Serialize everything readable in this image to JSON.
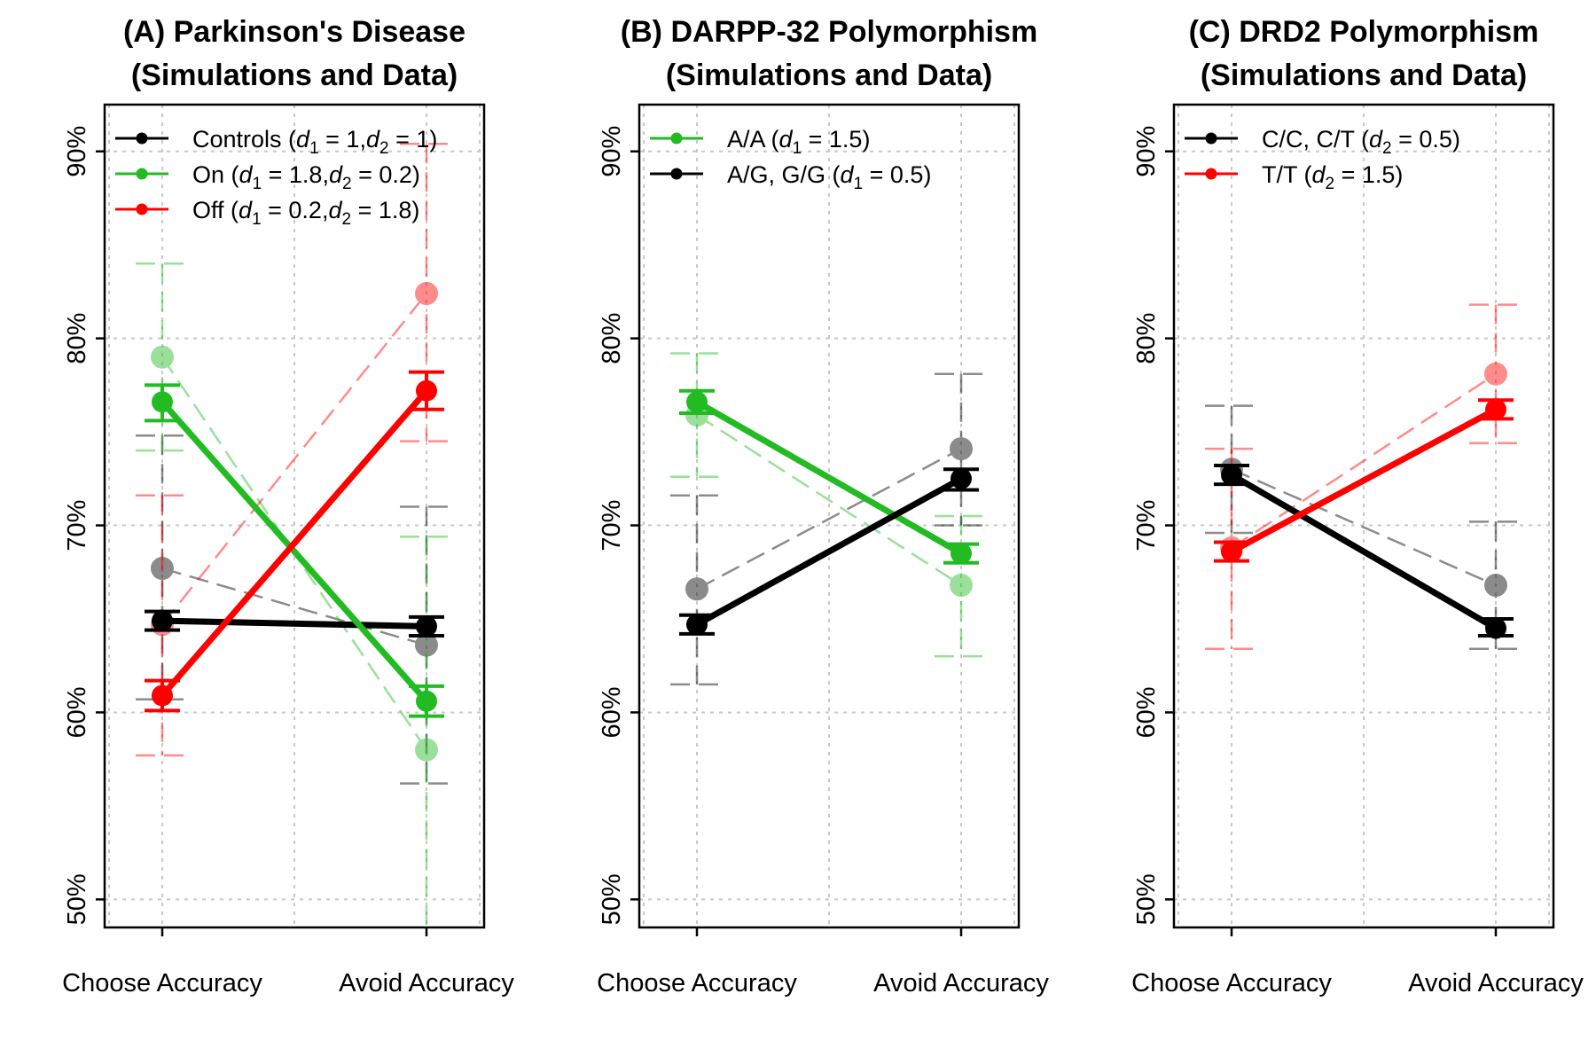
{
  "colors": {
    "black": "#000000",
    "green": "#22bb22",
    "red": "#ff0000",
    "grid": "#c8c8c8"
  },
  "chart_data": [
    {
      "type": "line",
      "title_line1": "(A) Parkinson's Disease",
      "title_line2": "(Simulations and Data)",
      "categories": [
        "Choose Accuracy",
        "Avoid Accuracy"
      ],
      "y_ticks": [
        "50%",
        "60%",
        "70%",
        "80%",
        "90%"
      ],
      "ylim": [
        48.5,
        92.5
      ],
      "grid": true,
      "legend_position": "top-left",
      "legend": [
        {
          "color": "#000000",
          "label": "Controls",
          "params": [
            "d|1|= 1",
            "d|2|= 1"
          ]
        },
        {
          "color": "#22bb22",
          "label": "On",
          "params": [
            "d|1|= 1.8",
            "d|2|= 0.2"
          ]
        },
        {
          "color": "#ff0000",
          "label": "Off",
          "params": [
            "d|1|= 0.2",
            "d|2|= 1.8"
          ]
        }
      ],
      "series": [
        {
          "name": "Controls",
          "color": "#000000",
          "simulation": {
            "values": [
              64.9,
              64.6
            ],
            "err_low": [
              64.4,
              64.1
            ],
            "err_high": [
              65.4,
              65.1
            ]
          },
          "data": {
            "values": [
              67.7,
              63.6
            ],
            "err_low": [
              60.7,
              56.2
            ],
            "err_high": [
              74.8,
              71.0
            ]
          }
        },
        {
          "name": "On",
          "color": "#22bb22",
          "simulation": {
            "values": [
              76.6,
              60.6
            ],
            "err_low": [
              75.6,
              59.8
            ],
            "err_high": [
              77.5,
              61.4
            ]
          },
          "data": {
            "values": [
              79.0,
              58.0
            ],
            "err_low": [
              74.0,
              46.5
            ],
            "err_high": [
              84.0,
              69.4
            ]
          }
        },
        {
          "name": "Off",
          "color": "#ff0000",
          "simulation": {
            "values": [
              60.9,
              77.2
            ],
            "err_low": [
              60.1,
              76.2
            ],
            "err_high": [
              61.7,
              78.2
            ]
          },
          "data": {
            "values": [
              64.7,
              82.4
            ],
            "err_low": [
              57.7,
              74.5
            ],
            "err_high": [
              71.6,
              90.4
            ]
          }
        }
      ]
    },
    {
      "type": "line",
      "title_line1": "(B) DARPP-32 Polymorphism",
      "title_line2": "(Simulations and Data)",
      "categories": [
        "Choose Accuracy",
        "Avoid Accuracy"
      ],
      "y_ticks": [
        "50%",
        "60%",
        "70%",
        "80%",
        "90%"
      ],
      "ylim": [
        48.5,
        92.5
      ],
      "grid": true,
      "legend_position": "top-left",
      "legend": [
        {
          "color": "#22bb22",
          "label": "A/A",
          "params": [
            "d|1|= 1.5"
          ]
        },
        {
          "color": "#000000",
          "label": "A/G, G/G",
          "params": [
            "d|1|= 0.5"
          ]
        }
      ],
      "series": [
        {
          "name": "A/A",
          "color": "#22bb22",
          "simulation": {
            "values": [
              76.6,
              68.5
            ],
            "err_low": [
              76.0,
              68.0
            ],
            "err_high": [
              77.2,
              69.0
            ]
          },
          "data": {
            "values": [
              75.9,
              66.8
            ],
            "err_low": [
              72.6,
              63.0
            ],
            "err_high": [
              79.2,
              70.5
            ]
          }
        },
        {
          "name": "A/G, G/G",
          "color": "#000000",
          "simulation": {
            "values": [
              64.7,
              72.5
            ],
            "err_low": [
              64.2,
              71.9
            ],
            "err_high": [
              65.2,
              73.0
            ]
          },
          "data": {
            "values": [
              66.6,
              74.1
            ],
            "err_low": [
              61.5,
              70.0
            ],
            "err_high": [
              71.6,
              78.1
            ]
          }
        }
      ]
    },
    {
      "type": "line",
      "title_line1": "(C) DRD2 Polymorphism",
      "title_line2": "(Simulations and Data)",
      "categories": [
        "Choose Accuracy",
        "Avoid Accuracy"
      ],
      "y_ticks": [
        "50%",
        "60%",
        "70%",
        "80%",
        "90%"
      ],
      "ylim": [
        48.5,
        92.5
      ],
      "grid": true,
      "legend_position": "top-left",
      "legend": [
        {
          "color": "#000000",
          "label": "C/C, C/T",
          "params": [
            "d|2|= 0.5"
          ]
        },
        {
          "color": "#ff0000",
          "label": "T/T",
          "params": [
            "d|2|= 1.5"
          ]
        }
      ],
      "series": [
        {
          "name": "C/C, C/T",
          "color": "#000000",
          "simulation": {
            "values": [
              72.7,
              64.5
            ],
            "err_low": [
              72.2,
              64.1
            ],
            "err_high": [
              73.2,
              65.0
            ]
          },
          "data": {
            "values": [
              73.0,
              66.8
            ],
            "err_low": [
              69.6,
              63.4
            ],
            "err_high": [
              76.4,
              70.2
            ]
          }
        },
        {
          "name": "T/T",
          "color": "#ff0000",
          "simulation": {
            "values": [
              68.6,
              76.2
            ],
            "err_low": [
              68.1,
              75.7
            ],
            "err_high": [
              69.1,
              76.7
            ]
          },
          "data": {
            "values": [
              68.8,
              78.1
            ],
            "err_low": [
              63.4,
              74.4
            ],
            "err_high": [
              74.1,
              81.8
            ]
          }
        }
      ]
    }
  ]
}
